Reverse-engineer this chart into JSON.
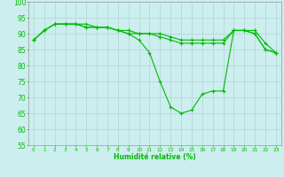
{
  "x": [
    0,
    1,
    2,
    3,
    4,
    5,
    6,
    7,
    8,
    9,
    10,
    11,
    12,
    13,
    14,
    15,
    16,
    17,
    18,
    19,
    20,
    21,
    22,
    23
  ],
  "line1": [
    88,
    91,
    93,
    93,
    93,
    93,
    92,
    92,
    91,
    90,
    88,
    84,
    75,
    67,
    65,
    66,
    71,
    72,
    72,
    91,
    91,
    90,
    85,
    84
  ],
  "line2": [
    88,
    91,
    93,
    93,
    93,
    92,
    92,
    92,
    91,
    91,
    90,
    90,
    89,
    88,
    87,
    87,
    87,
    87,
    87,
    91,
    91,
    90,
    85,
    84
  ],
  "line3": [
    88,
    91,
    93,
    93,
    93,
    92,
    92,
    92,
    91,
    90,
    90,
    90,
    90,
    89,
    88,
    88,
    88,
    88,
    88,
    91,
    91,
    91,
    87,
    84
  ],
  "line_color": "#00bb00",
  "bg_color": "#cceeee",
  "grid_color": "#aacccc",
  "xlabel": "Humidité relative (%)",
  "ylim": [
    55,
    100
  ],
  "xlim": [
    -0.5,
    23.5
  ],
  "yticks": [
    55,
    60,
    65,
    70,
    75,
    80,
    85,
    90,
    95,
    100
  ],
  "xticks": [
    0,
    1,
    2,
    3,
    4,
    5,
    6,
    7,
    8,
    9,
    10,
    11,
    12,
    13,
    14,
    15,
    16,
    17,
    18,
    19,
    20,
    21,
    22,
    23
  ],
  "marker_size": 3,
  "linewidth": 0.8,
  "xlabel_fontsize": 5.5,
  "ytick_fontsize": 5.5,
  "xtick_fontsize": 4.2
}
